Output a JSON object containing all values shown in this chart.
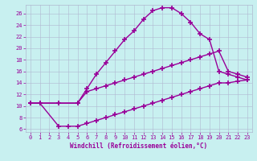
{
  "xlabel": "Windchill (Refroidissement éolien,°C)",
  "bg_color": "#c8f0f0",
  "line_color": "#990099",
  "grid_color": "#b0b8d0",
  "xlim": [
    -0.5,
    23.5
  ],
  "ylim": [
    5.5,
    27.5
  ],
  "xticks": [
    0,
    1,
    2,
    3,
    4,
    5,
    6,
    7,
    8,
    9,
    10,
    11,
    12,
    13,
    14,
    15,
    16,
    17,
    18,
    19,
    20,
    21,
    22,
    23
  ],
  "yticks": [
    6,
    8,
    10,
    12,
    14,
    16,
    18,
    20,
    22,
    24,
    26
  ],
  "line1_x": [
    0,
    1,
    3,
    5,
    6,
    7,
    8,
    9,
    10,
    11,
    12,
    13,
    14,
    15,
    16,
    17,
    18,
    19,
    20,
    21,
    22,
    23
  ],
  "line1_y": [
    10.5,
    10.5,
    10.5,
    10.5,
    13.0,
    15.5,
    17.5,
    19.5,
    21.5,
    23.0,
    25.0,
    26.5,
    27.0,
    27.0,
    26.0,
    24.5,
    22.5,
    21.5,
    16.0,
    15.5,
    15.0,
    14.5
  ],
  "line2_x": [
    0,
    1,
    3,
    5,
    6,
    7,
    8,
    9,
    10,
    11,
    12,
    13,
    14,
    15,
    16,
    17,
    18,
    19,
    20,
    21,
    22,
    23
  ],
  "line2_y": [
    10.5,
    10.5,
    10.5,
    10.5,
    12.5,
    13.0,
    13.5,
    14.0,
    14.5,
    15.0,
    15.5,
    16.0,
    16.5,
    17.0,
    17.5,
    18.0,
    18.5,
    19.0,
    19.5,
    16.0,
    15.5,
    15.0
  ],
  "line3_x": [
    0,
    1,
    3,
    4,
    5,
    6,
    7,
    8,
    9,
    10,
    11,
    12,
    13,
    14,
    15,
    16,
    17,
    18,
    19,
    20,
    21,
    22,
    23
  ],
  "line3_y": [
    10.5,
    10.5,
    6.5,
    6.5,
    6.5,
    7.0,
    7.5,
    8.0,
    8.5,
    9.0,
    9.5,
    10.0,
    10.5,
    11.0,
    11.5,
    12.0,
    12.5,
    13.0,
    13.5,
    14.0,
    14.0,
    14.3,
    14.5
  ],
  "marker": "+",
  "markersize": 4,
  "linewidth": 1.0
}
